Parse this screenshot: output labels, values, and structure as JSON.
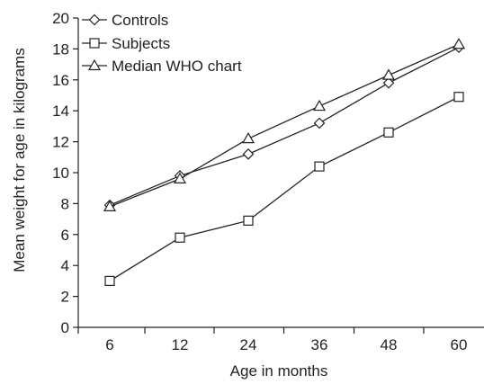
{
  "chart_data": {
    "type": "line",
    "categories": [
      "6",
      "12",
      "24",
      "36",
      "48",
      "60"
    ],
    "xlabel": "Age in months",
    "ylabel": "Mean weight for age in kilograms",
    "ylim": [
      0,
      20
    ],
    "yticks": [
      0,
      2,
      4,
      6,
      8,
      10,
      12,
      14,
      16,
      18,
      20
    ],
    "grid": false,
    "legend_position": "top-left",
    "series": [
      {
        "name": "Controls",
        "marker": "diamond",
        "values": [
          7.9,
          9.8,
          11.2,
          13.2,
          15.8,
          18.1
        ]
      },
      {
        "name": "Subjects",
        "marker": "square",
        "values": [
          3.0,
          5.8,
          6.9,
          10.4,
          12.6,
          14.9
        ]
      },
      {
        "name": "Median WHO chart",
        "marker": "triangle",
        "values": [
          7.8,
          9.6,
          12.2,
          14.3,
          16.3,
          18.3
        ]
      }
    ],
    "colors": {
      "line": "#222222",
      "marker_fill": "#ffffff"
    }
  }
}
